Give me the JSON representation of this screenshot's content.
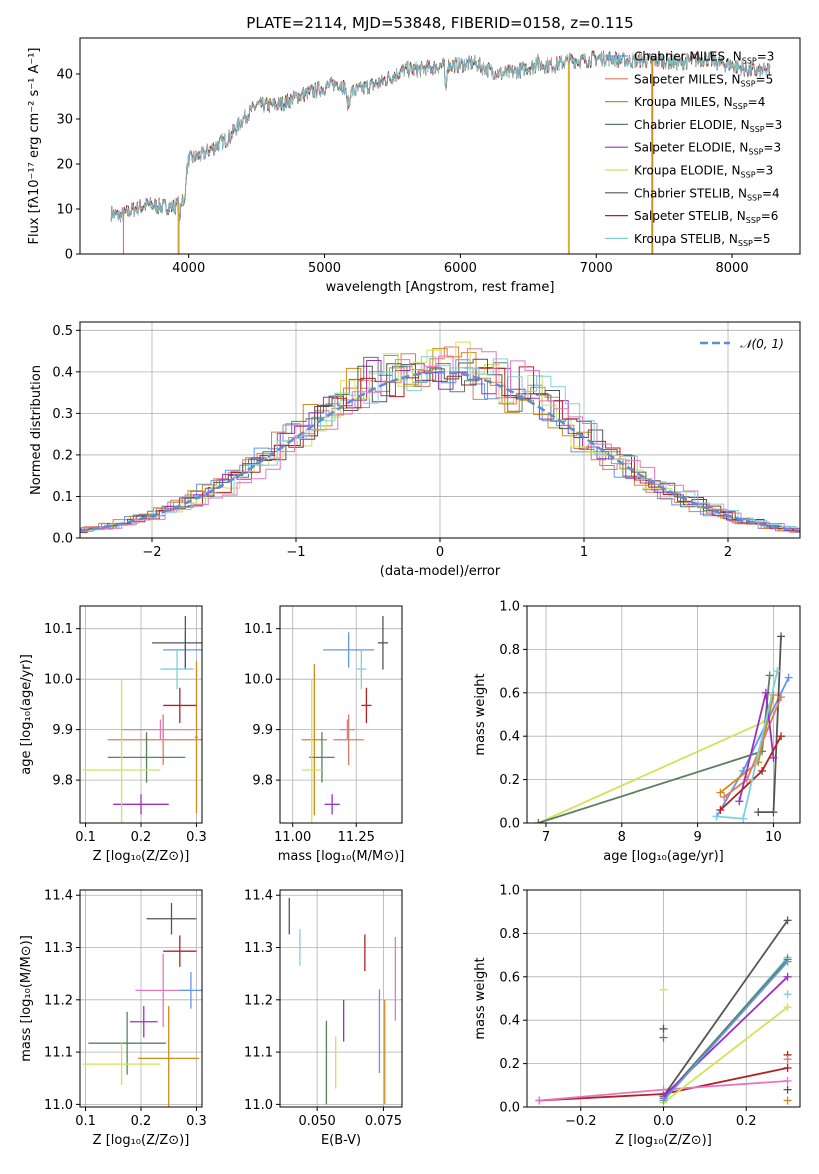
{
  "chart_data": [
    {
      "id": "spectrum",
      "type": "line",
      "title": "PLATE=2114, MJD=53848, FIBERID=0158, z=0.115",
      "xlabel": "wavelength [Angstrom, rest frame]",
      "ylabel": "Flux [fλ10⁻¹⁷ erg cm⁻² s⁻¹ A⁻¹]",
      "xlim": [
        3200,
        8500
      ],
      "ylim": [
        0,
        48
      ],
      "xticks": [
        "4000",
        "5000",
        "6000",
        "7000",
        "8000"
      ],
      "yticks": [
        "0",
        "10",
        "20",
        "30",
        "40"
      ],
      "grid": false,
      "legend_position": "top-right",
      "approx_envelope": {
        "x": [
          3430,
          3500,
          3600,
          3700,
          3800,
          3900,
          3950,
          4000,
          4100,
          4200,
          4300,
          4400,
          4500,
          4600,
          4700,
          4800,
          4900,
          5000,
          5100,
          5200,
          5300,
          5400,
          5500,
          5600,
          5700,
          5800,
          5900,
          6000,
          6100,
          6200,
          6300,
          6400,
          6500,
          6600,
          6700,
          6800,
          6900,
          7000,
          7100,
          7200,
          7300,
          7400,
          7500,
          7600,
          7700,
          7800,
          7900,
          8000,
          8100,
          8200,
          8280
        ],
        "y": [
          9,
          8.5,
          10,
          11,
          10.5,
          10.5,
          12,
          21,
          22,
          24,
          26,
          30,
          33,
          33,
          33.5,
          35,
          36,
          37,
          38,
          36,
          37,
          38,
          39.5,
          41,
          41,
          41.5,
          42,
          42,
          42.5,
          41,
          40,
          40.5,
          41.5,
          42,
          42,
          43,
          43,
          43.5,
          43.5,
          43,
          43,
          43,
          43,
          42.5,
          43,
          43.5,
          42.5,
          42,
          41,
          40.5,
          41
        ]
      },
      "series": [
        {
          "name": "Chabrier MILES, N$_{SSP}$=3",
          "color": "#6495ED"
        },
        {
          "name": "Salpeter MILES, N$_{SSP}$=5",
          "color": "#E07A5F"
        },
        {
          "name": "Kroupa MILES, N$_{SSP}$=4",
          "color": "#D08A1E"
        },
        {
          "name": "Chabrier ELODIE, N$_{SSP}$=3",
          "color": "#5A8060"
        },
        {
          "name": "Salpeter ELODIE, N$_{SSP}$=3",
          "color": "#9B30C0"
        },
        {
          "name": "Kroupa ELODIE, N$_{SSP}$=3",
          "color": "#D4E157"
        },
        {
          "name": "Chabrier STELIB, N$_{SSP}$=4",
          "color": "#555555"
        },
        {
          "name": "Salpeter STELIB, N$_{SSP}$=6",
          "color": "#B22222"
        },
        {
          "name": "Kroupa STELIB, N$_{SSP}$=5",
          "color": "#7FD0DD"
        }
      ]
    },
    {
      "id": "residuals",
      "type": "line",
      "xlabel": "(data-model)/error",
      "ylabel": "Normed distribution",
      "xlim": [
        -2.5,
        2.5
      ],
      "ylim": [
        0,
        0.52
      ],
      "xticks": [
        "−2",
        "−1",
        "0",
        "1",
        "2"
      ],
      "yticks": [
        "0.0",
        "0.1",
        "0.2",
        "0.3",
        "0.4",
        "0.5"
      ],
      "grid": true,
      "legend_position": "top-right",
      "reference_curve": {
        "name": "𝒩(0, 1)",
        "color": "#5B8ED6"
      }
    },
    {
      "id": "age_vs_Z",
      "type": "scatter",
      "xlabel": "Z [log₁₀(Z/Z⊙)]",
      "ylabel": "age  [log₁₀(age/yr)]",
      "xlim": [
        0.09,
        0.31
      ],
      "ylim": [
        9.715,
        10.145
      ],
      "xticks": [
        "0.1",
        "0.2",
        "0.3"
      ],
      "yticks": [
        "9.8",
        "9.9",
        "10.0",
        "10.1"
      ],
      "grid": true,
      "points": [
        {
          "c": "#6495ED",
          "x": 0.28,
          "y": 10.058,
          "xe": 0.04,
          "ye": 0.035
        },
        {
          "c": "#E07A5F",
          "x": 0.24,
          "y": 9.88,
          "xe": 0.1,
          "ye": 0.05
        },
        {
          "c": "#D08A1E",
          "x": 0.3,
          "y": 9.885,
          "xe": 0.003,
          "ye": 0.15
        },
        {
          "c": "#5A8060",
          "x": 0.21,
          "y": 9.845,
          "xe": 0.07,
          "ye": 0.05
        },
        {
          "c": "#9B30C0",
          "x": 0.2,
          "y": 9.752,
          "xe": 0.05,
          "ye": 0.02
        },
        {
          "c": "#D4E157",
          "x": 0.165,
          "y": 9.82,
          "xe": 0.07,
          "ye": 0.18
        },
        {
          "c": "#555555",
          "x": 0.28,
          "y": 10.072,
          "xe": 0.06,
          "ye": 0.053
        },
        {
          "c": "#B22222",
          "x": 0.27,
          "y": 9.948,
          "xe": 0.03,
          "ye": 0.035
        },
        {
          "c": "#7FD0DD",
          "x": 0.265,
          "y": 10.02,
          "xe": 0.03,
          "ye": 0.04
        },
        {
          "c": "#E377C2",
          "x": 0.235,
          "y": 9.9,
          "xe": 0.07,
          "ye": 0.02
        }
      ]
    },
    {
      "id": "age_vs_mass",
      "type": "scatter",
      "xlabel": "mass [log₁₀(M/M⊙)]",
      "xlim": [
        10.95,
        11.43
      ],
      "ylim": [
        9.715,
        10.145
      ],
      "xticks": [
        "11.00",
        "11.25"
      ],
      "yticks": [
        "9.8",
        "9.9",
        "10.0",
        "10.1"
      ],
      "grid": true,
      "points": [
        {
          "c": "#6495ED",
          "x": 11.22,
          "y": 10.058,
          "xe": 0.1,
          "ye": 0.035
        },
        {
          "c": "#E07A5F",
          "x": 11.22,
          "y": 9.88,
          "xe": 0.06,
          "ye": 0.05
        },
        {
          "c": "#D08A1E",
          "x": 11.085,
          "y": 9.88,
          "xe": 0.05,
          "ye": 0.15
        },
        {
          "c": "#5A8060",
          "x": 11.115,
          "y": 9.845,
          "xe": 0.05,
          "ye": 0.05
        },
        {
          "c": "#9B30C0",
          "x": 11.155,
          "y": 9.752,
          "xe": 0.03,
          "ye": 0.02
        },
        {
          "c": "#D4E157",
          "x": 11.075,
          "y": 9.82,
          "xe": 0.04,
          "ye": 0.18
        },
        {
          "c": "#555555",
          "x": 11.355,
          "y": 10.072,
          "xe": 0.02,
          "ye": 0.053
        },
        {
          "c": "#B22222",
          "x": 11.29,
          "y": 9.948,
          "xe": 0.02,
          "ye": 0.035
        },
        {
          "c": "#7FD0DD",
          "x": 11.27,
          "y": 10.02,
          "xe": 0.02,
          "ye": 0.04
        },
        {
          "c": "#E377C2",
          "x": 11.215,
          "y": 9.9,
          "xe": 0.03,
          "ye": 0.02
        }
      ]
    },
    {
      "id": "weight_vs_age",
      "type": "line",
      "xlabel": "age  [log₁₀(age/yr)]",
      "ylabel": "mass weight",
      "xlim": [
        6.75,
        10.35
      ],
      "ylim": [
        0,
        1.0
      ],
      "xticks": [
        "7",
        "8",
        "9",
        "10"
      ],
      "yticks": [
        "0.0",
        "0.2",
        "0.4",
        "0.6",
        "0.8",
        "1.0"
      ],
      "grid": true,
      "series": [
        {
          "c": "#D4E157",
          "x": [
            6.9,
            9.9,
            10.0
          ],
          "y": [
            0.0,
            0.47,
            0.53
          ]
        },
        {
          "c": "#5A8060",
          "x": [
            6.9,
            9.85,
            9.95
          ],
          "y": [
            0.0,
            0.33,
            0.68
          ]
        },
        {
          "c": "#6495ED",
          "x": [
            9.25,
            9.6,
            10.2
          ],
          "y": [
            0.03,
            0.24,
            0.67
          ]
        },
        {
          "c": "#555555",
          "x": [
            9.8,
            10.0,
            10.1
          ],
          "y": [
            0.05,
            0.05,
            0.86
          ]
        },
        {
          "c": "#D08A1E",
          "x": [
            9.3,
            9.8,
            10.0
          ],
          "y": [
            0.14,
            0.28,
            0.59
          ]
        },
        {
          "c": "#E07A5F",
          "x": [
            9.35,
            9.65,
            10.1
          ],
          "y": [
            0.12,
            0.2,
            0.58
          ]
        },
        {
          "c": "#9B30C0",
          "x": [
            9.55,
            9.9,
            10.0
          ],
          "y": [
            0.1,
            0.6,
            0.3
          ]
        },
        {
          "c": "#B22222",
          "x": [
            9.3,
            9.85,
            10.1
          ],
          "y": [
            0.06,
            0.24,
            0.4
          ]
        },
        {
          "c": "#7FD0DD",
          "x": [
            9.25,
            9.6,
            10.05
          ],
          "y": [
            0.03,
            0.02,
            0.7
          ]
        }
      ]
    },
    {
      "id": "mass_vs_Z",
      "type": "scatter",
      "xlabel": "Z [log₁₀(Z/Z⊙)]",
      "ylabel": "mass [log₁₀(M/M⊙)]",
      "xlim": [
        0.09,
        0.31
      ],
      "ylim": [
        10.995,
        11.41
      ],
      "xticks": [
        "0.1",
        "0.2",
        "0.3"
      ],
      "yticks": [
        "11.0",
        "11.1",
        "11.2",
        "11.3",
        "11.4"
      ],
      "grid": true,
      "points": [
        {
          "c": "#555555",
          "x": 0.255,
          "y": 11.355,
          "xe": 0.045,
          "ye": 0.03
        },
        {
          "c": "#B22222",
          "x": 0.27,
          "y": 11.293,
          "xe": 0.03,
          "ye": 0.03
        },
        {
          "c": "#E377C2",
          "x": 0.24,
          "y": 11.218,
          "xe": 0.05,
          "ye": 0.07
        },
        {
          "c": "#6495ED",
          "x": 0.29,
          "y": 11.218,
          "xe": 0.02,
          "ye": 0.035
        },
        {
          "c": "#9B30C0",
          "x": 0.205,
          "y": 11.158,
          "xe": 0.025,
          "ye": 0.03
        },
        {
          "c": "#5A8060",
          "x": 0.175,
          "y": 11.117,
          "xe": 0.07,
          "ye": 0.06
        },
        {
          "c": "#D08A1E",
          "x": 0.25,
          "y": 11.088,
          "xe": 0.055,
          "ye": 0.1
        },
        {
          "c": "#D4E157",
          "x": 0.165,
          "y": 11.077,
          "xe": 0.07,
          "ye": 0.04
        }
      ]
    },
    {
      "id": "mass_vs_EBV",
      "type": "scatter",
      "xlabel": "E(B-V)",
      "xlim": [
        0.036,
        0.082
      ],
      "ylim": [
        10.995,
        11.41
      ],
      "xticks": [
        "0.050",
        "0.075"
      ],
      "yticks": [
        "11.0",
        "11.1",
        "11.2",
        "11.3",
        "11.4"
      ],
      "grid": true,
      "points": [
        {
          "c": "#555555",
          "x": 0.0395,
          "y": 11.36,
          "ye": 0.035
        },
        {
          "c": "#7FD0DD",
          "x": 0.0435,
          "y": 11.3,
          "ye": 0.035
        },
        {
          "c": "#5A8060",
          "x": 0.0535,
          "y": 11.08,
          "ye": 0.08
        },
        {
          "c": "#D4E157",
          "x": 0.057,
          "y": 11.08,
          "ye": 0.05
        },
        {
          "c": "#9B30C0",
          "x": 0.06,
          "y": 11.16,
          "ye": 0.04
        },
        {
          "c": "#B22222",
          "x": 0.068,
          "y": 11.29,
          "ye": 0.035
        },
        {
          "c": "#6495ED",
          "x": 0.0735,
          "y": 11.14,
          "ye": 0.08
        },
        {
          "c": "#D08A1E",
          "x": 0.0755,
          "y": 11.1,
          "ye": 0.1
        },
        {
          "c": "#E377C2",
          "x": 0.0795,
          "y": 11.24,
          "ye": 0.08
        }
      ]
    },
    {
      "id": "weight_vs_Z",
      "type": "line",
      "xlabel": "Z [log₁₀(Z/Z⊙)]",
      "ylabel": "mass weight",
      "xlim": [
        -0.33,
        0.33
      ],
      "ylim": [
        0,
        1.0
      ],
      "xticks": [
        "−0.2",
        "0.0",
        "0.2"
      ],
      "yticks": [
        "0.0",
        "0.2",
        "0.4",
        "0.6",
        "0.8",
        "1.0"
      ],
      "grid": true,
      "series": [
        {
          "c": "#B22222",
          "x": [
            -0.3,
            0.0,
            0.3
          ],
          "y": [
            0.03,
            0.06,
            0.18
          ]
        },
        {
          "c": "#E377C2",
          "x": [
            -0.3,
            0.0,
            0.3
          ],
          "y": [
            0.03,
            0.08,
            0.12
          ]
        },
        {
          "c": "#555555",
          "x": [
            0.0,
            0.3
          ],
          "y": [
            0.05,
            0.86
          ]
        },
        {
          "c": "#7FD0DD",
          "x": [
            0.0,
            0.3
          ],
          "y": [
            0.03,
            0.69
          ]
        },
        {
          "c": "#5A8060",
          "x": [
            0.0,
            0.3
          ],
          "y": [
            0.04,
            0.68
          ]
        },
        {
          "c": "#9B30C0",
          "x": [
            0.0,
            0.3
          ],
          "y": [
            0.05,
            0.6
          ]
        },
        {
          "c": "#D4E157",
          "x": [
            0.0,
            0.3
          ],
          "y": [
            0.02,
            0.46
          ]
        },
        {
          "c": "#6495ED",
          "x": [
            0.0,
            0.3
          ],
          "y": [
            0.03,
            0.67
          ]
        }
      ],
      "markers": [
        {
          "c": "#D4E157",
          "x": 0.0,
          "y": 0.54
        },
        {
          "c": "#555555",
          "x": 0.0,
          "y": 0.36
        },
        {
          "c": "#5A8060",
          "x": 0.0,
          "y": 0.32
        },
        {
          "c": "#D08A1E",
          "x": 0.3,
          "y": 0.03
        },
        {
          "c": "#555555",
          "x": 0.3,
          "y": 0.08
        },
        {
          "c": "#B22222",
          "x": 0.3,
          "y": 0.24
        },
        {
          "c": "#E07A5F",
          "x": 0.3,
          "y": 0.22
        },
        {
          "c": "#7FD0DD",
          "x": 0.3,
          "y": 0.52
        }
      ]
    }
  ]
}
